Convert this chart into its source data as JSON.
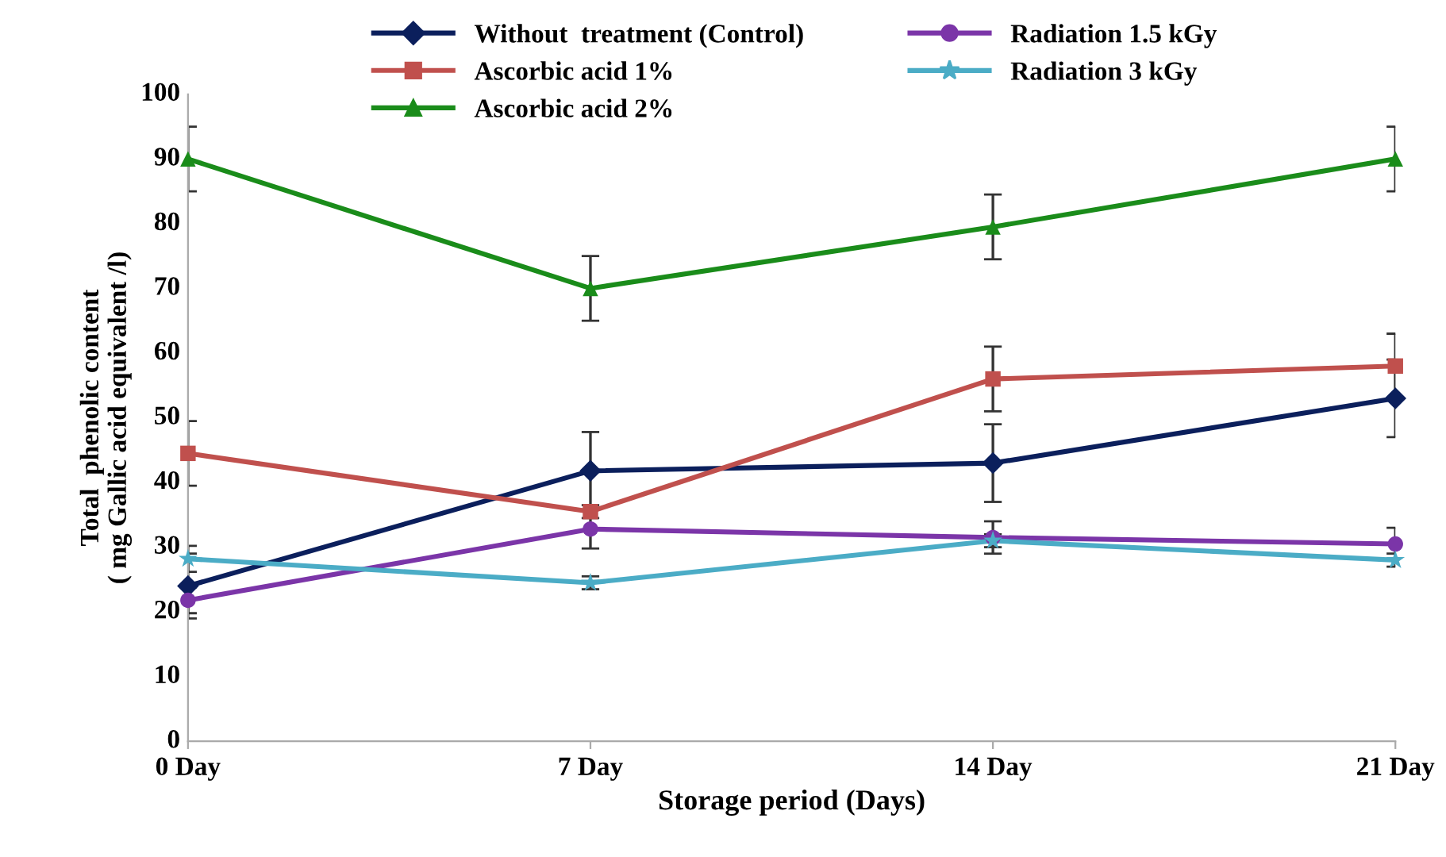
{
  "chart_data": {
    "type": "line",
    "xlabel": "Storage period (Days)",
    "ylabel": "Total  phenolic content\n( mg Gallic acid equivalent /l)",
    "categories": [
      "0 Day",
      "7 Day",
      "14 Day",
      "21 Day"
    ],
    "series": [
      {
        "name": "Without  treatment (Control)",
        "color": "#0b1f5c",
        "marker": "diamond",
        "values": [
          24,
          41.8,
          43,
          53
        ],
        "errors": [
          5,
          6,
          6,
          6
        ]
      },
      {
        "name": "Ascorbic acid 1%",
        "color": "#c0504d",
        "marker": "square",
        "values": [
          44.5,
          35.5,
          56,
          58
        ],
        "errors": [
          5,
          1,
          5,
          5
        ]
      },
      {
        "name": "Ascorbic acid 2%",
        "color": "#1a8c1a",
        "marker": "triangle",
        "values": [
          90,
          70,
          79.5,
          90
        ],
        "errors": [
          5,
          5,
          5,
          5
        ]
      },
      {
        "name": "Radiation 1.5 kGy",
        "color": "#7b35a8",
        "marker": "circle",
        "values": [
          21.8,
          32.8,
          31.5,
          30.5
        ],
        "errors": [
          2,
          3,
          2.5,
          2.5
        ]
      },
      {
        "name": "Radiation 3 kGy",
        "color": "#4bacc6",
        "marker": "star",
        "values": [
          28.2,
          24.5,
          31,
          28
        ],
        "errors": [
          2,
          1,
          1,
          1
        ]
      }
    ],
    "ylim": [
      0,
      100
    ],
    "yticks": [
      0,
      10,
      20,
      30,
      40,
      50,
      60,
      70,
      80,
      90,
      100
    ],
    "grid": false,
    "legend": "top"
  }
}
